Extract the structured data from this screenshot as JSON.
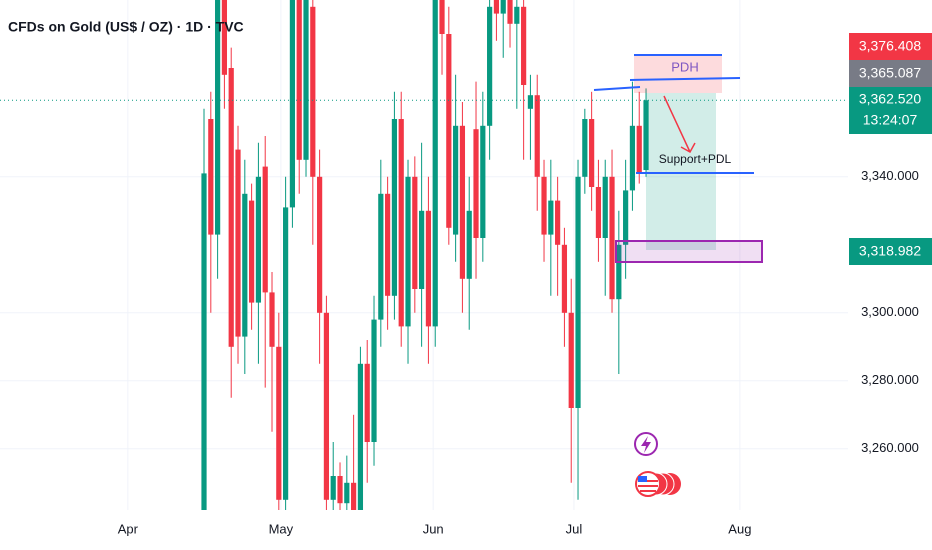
{
  "chart_data": {
    "type": "candlestick",
    "title": "CFDs on Gold (US$ / OZ) · 1D · TVC",
    "up_color": "#089981",
    "down_color": "#f23645",
    "open": [
      3240,
      3357,
      3323,
      3395,
      3372,
      3348,
      3293,
      3333,
      3303,
      3343,
      3306,
      3290,
      3245,
      3331,
      3395,
      3345,
      3390,
      3340,
      3300,
      3245,
      3252,
      3244,
      3250,
      3242,
      3285,
      3262,
      3298,
      3335,
      3305,
      3357,
      3296,
      3340,
      3307,
      3330,
      3296,
      3392,
      3382,
      3323,
      3355,
      3310,
      3354,
      3322,
      3355,
      3392,
      3388,
      3393,
      3385,
      3390,
      3360,
      3364,
      3340,
      3323,
      3333,
      3320,
      3300,
      3272,
      3340,
      3357,
      3337,
      3322,
      3340,
      3304,
      3320,
      3336,
      3355,
      3342
    ],
    "high": [
      3360,
      3365,
      3420,
      3410,
      3378,
      3355,
      3345,
      3338,
      3350,
      3352,
      3312,
      3300,
      3340,
      3410,
      3420,
      3410,
      3398,
      3348,
      3305,
      3262,
      3256,
      3258,
      3270,
      3290,
      3292,
      3305,
      3345,
      3340,
      3365,
      3365,
      3345,
      3346,
      3350,
      3340,
      3405,
      3410,
      3390,
      3370,
      3362,
      3340,
      3368,
      3365,
      3400,
      3400,
      3398,
      3400,
      3395,
      3395,
      3370,
      3370,
      3345,
      3345,
      3340,
      3325,
      3310,
      3345,
      3360,
      3365,
      3345,
      3345,
      3348,
      3330,
      3345,
      3368,
      3365,
      3366
    ],
    "low": [
      3235,
      3300,
      3310,
      3360,
      3275,
      3285,
      3282,
      3295,
      3285,
      3278,
      3265,
      3225,
      3240,
      3325,
      3335,
      3340,
      3320,
      3285,
      3235,
      3238,
      3238,
      3236,
      3236,
      3240,
      3250,
      3255,
      3290,
      3295,
      3298,
      3290,
      3285,
      3300,
      3290,
      3285,
      3290,
      3370,
      3320,
      3315,
      3300,
      3295,
      3310,
      3315,
      3345,
      3380,
      3375,
      3378,
      3360,
      3345,
      3345,
      3330,
      3315,
      3305,
      3305,
      3290,
      3250,
      3245,
      3335,
      3330,
      3315,
      3305,
      3300,
      3282,
      3310,
      3330,
      3338,
      3340
    ],
    "close": [
      3341,
      3323,
      3395,
      3370,
      3290,
      3293,
      3335,
      3303,
      3340,
      3306,
      3290,
      3245,
      3331,
      3395,
      3345,
      3395,
      3340,
      3300,
      3245,
      3252,
      3244,
      3250,
      3242,
      3285,
      3262,
      3298,
      3335,
      3305,
      3357,
      3296,
      3340,
      3307,
      3330,
      3296,
      3392,
      3382,
      3325,
      3355,
      3310,
      3330,
      3322,
      3355,
      3390,
      3388,
      3393,
      3385,
      3390,
      3367,
      3364,
      3340,
      3323,
      3333,
      3320,
      3300,
      3272,
      3340,
      3357,
      3337,
      3322,
      3340,
      3304,
      3320,
      3336,
      3355,
      3341,
      3362.52
    ],
    "xlim": [
      -30,
      94.7
    ],
    "xticks": [
      {
        "value": -11.2,
        "label": "Apr"
      },
      {
        "value": 11.3,
        "label": "May"
      },
      {
        "value": 33.7,
        "label": "Jun"
      },
      {
        "value": 54.4,
        "label": "Jul"
      },
      {
        "value": 78.8,
        "label": "Aug"
      }
    ],
    "ylim": [
      3242,
      3392
    ],
    "yticks": [
      {
        "value": 3260,
        "label": "3,260.000"
      },
      {
        "value": 3280,
        "label": "3,280.000"
      },
      {
        "value": 3300,
        "label": "3,300.000"
      },
      {
        "value": 3340,
        "label": "3,340.000"
      }
    ],
    "grid": true,
    "price_labels": [
      "3,376.408",
      "3,365.087",
      "3,362.520",
      "3,318.982"
    ],
    "countdown": "13:24:07",
    "annotations": [
      "PDH",
      "Support+PDL"
    ]
  }
}
